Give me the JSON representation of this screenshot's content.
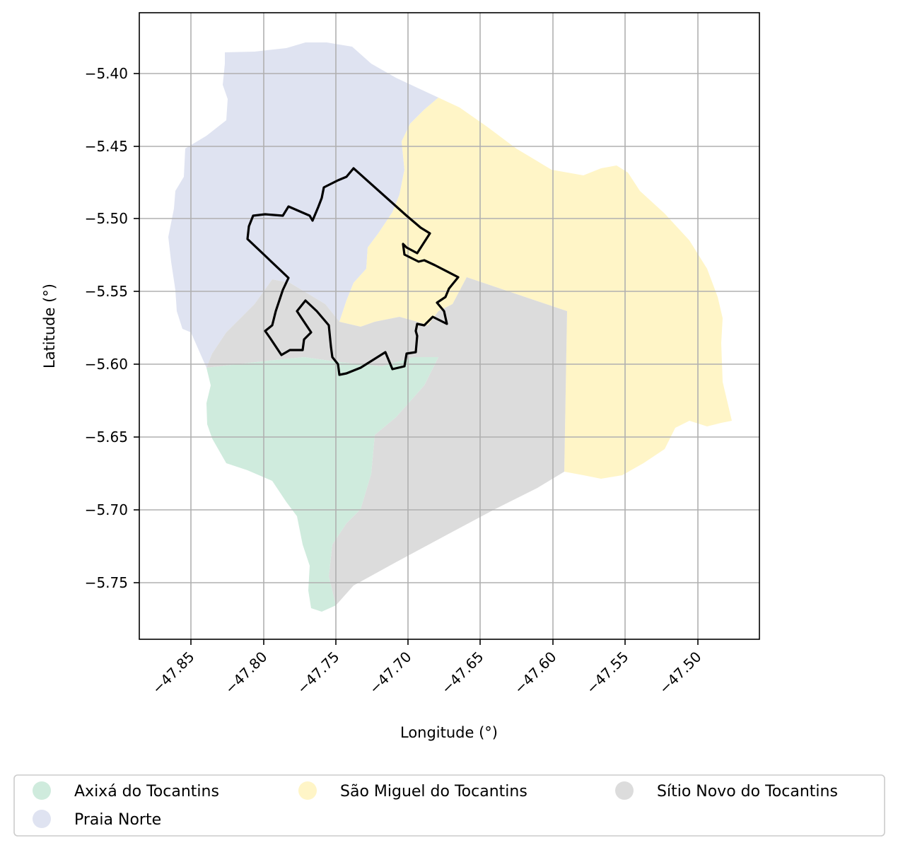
{
  "map": {
    "xlabel": "Longitude (°)",
    "ylabel": "Latitude (°)",
    "x_ticks": [
      "−47.85",
      "−47.80",
      "−47.75",
      "−47.70",
      "−47.65",
      "−47.60",
      "−47.55",
      "−47.50"
    ],
    "y_ticks": [
      "−5.40",
      "−5.45",
      "−5.50",
      "−5.55",
      "−5.60",
      "−5.65",
      "−5.70",
      "−5.75"
    ],
    "grid": true,
    "legend": {
      "placement": "bottom",
      "items": [
        {
          "label": "Axixá do Tocantins",
          "color": "#cfebdd"
        },
        {
          "label": "São Miguel do Tocantins",
          "color": "#fff5c7"
        },
        {
          "label": "Sítio Novo do Tocantins",
          "color": "#dcdcdc"
        },
        {
          "label": "Praia Norte",
          "color": "#dfe3f1"
        }
      ]
    },
    "region_colors": {
      "Praia Norte": "#dfe3f1",
      "São Miguel do Tocantins": "#fff5c7",
      "Sítio Novo do Tocantins": "#dcdcdc",
      "Axixá do Tocantins": "#cfebdd",
      "outline": "#000000"
    }
  }
}
